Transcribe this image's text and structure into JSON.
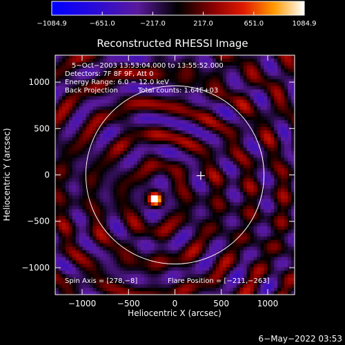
{
  "chart_data": {
    "type": "heatmap",
    "title": "Reconstructed RHESSI Image",
    "xlabel": "Heliocentric X (arcsec)",
    "ylabel": "Heliocentric Y (arcsec)",
    "xlim": [
      -1290,
      1290
    ],
    "ylim": [
      -1290,
      1290
    ],
    "xticks": [
      -1000,
      -500,
      0,
      500,
      1000
    ],
    "yticks": [
      1000,
      500,
      0,
      -500,
      -1000
    ],
    "xtick_labels": [
      "−1000",
      "−500",
      "0",
      "500",
      "1000"
    ],
    "ytick_labels": [
      "1000",
      "500",
      "0",
      "−500",
      "−1000"
    ],
    "colorbar": {
      "min": -1084.9,
      "max": 1084.9,
      "tick_values": [
        -1084.9,
        -651.0,
        -217.0,
        217.0,
        651.0,
        1084.9
      ],
      "tick_labels": [
        "−1084.9",
        "−651.0",
        "−217.0",
        "217.0",
        "651.0",
        "1084.9"
      ]
    },
    "annotations": [
      "5−Oct−2003 13:53:04.000 to 13:55:52.000",
      "Detectors: 7F 8F 9F, Att 0",
      "Energy Range: 6.0 − 12.0 keV",
      "Back Projection",
      "Total counts: 1.64E+03",
      "Spin Axis = [278,−8]",
      "Flare Position = [−211,−263]"
    ],
    "solar_limb_radius_arcsec": 960,
    "cross_marker": [
      278,
      -8
    ],
    "bright_source": [
      -211,
      -263
    ],
    "footer": "6−May−2022 03:53"
  }
}
